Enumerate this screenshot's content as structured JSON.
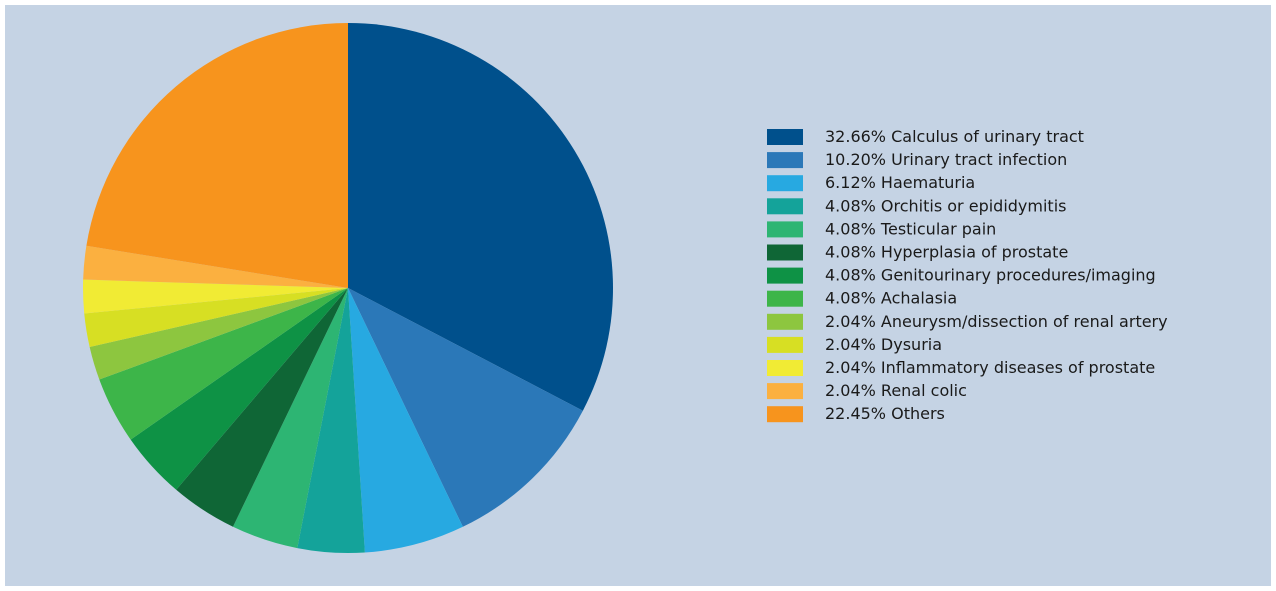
{
  "chart_data": {
    "type": "pie",
    "categories": [
      "Calculus of urinary tract",
      "Urinary tract infection",
      "Haematuria",
      "Orchitis or epididymitis",
      "Testicular pain",
      "Hyperplasia of prostate",
      "Genitourinary procedures/imaging",
      "Achalasia",
      "Aneurysm/dissection of renal artery",
      "Dysuria",
      "Inflammatory diseases of prostate",
      "Renal colic",
      "Others"
    ],
    "values": [
      32.66,
      10.2,
      6.12,
      4.08,
      4.08,
      4.08,
      4.08,
      4.08,
      2.04,
      2.04,
      2.04,
      2.04,
      22.45
    ],
    "value_labels": [
      "32.66%",
      "10.20%",
      "6.12%",
      "4.08%",
      "4.08%",
      "4.08%",
      "4.08%",
      "4.08%",
      "2.04%",
      "2.04%",
      "2.04%",
      "2.04%",
      "22.45%"
    ],
    "colors": [
      "#00508c",
      "#2b78b8",
      "#27a9e1",
      "#14a39a",
      "#2db573",
      "#0f6636",
      "#0e9245",
      "#3db549",
      "#8dc63f",
      "#d7df23",
      "#f1eb34",
      "#fbb040",
      "#f7941d"
    ],
    "legend": "right"
  }
}
